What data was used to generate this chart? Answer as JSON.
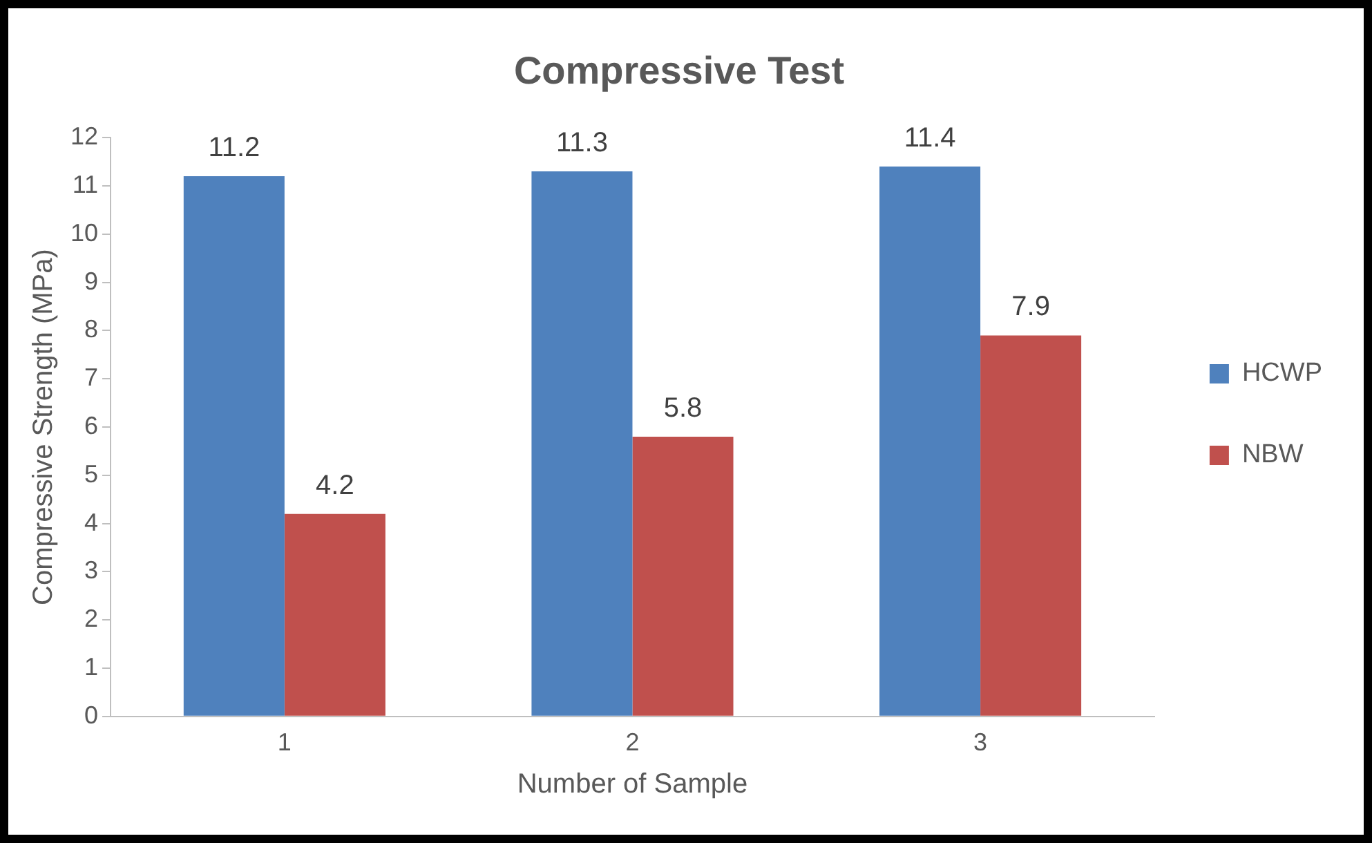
{
  "chart_data": {
    "type": "bar",
    "title": "Compressive Test",
    "xlabel": "Number of Sample",
    "ylabel": "Compressive Strength (MPa)",
    "categories": [
      "1",
      "2",
      "3"
    ],
    "series": [
      {
        "name": "HCWP",
        "color": "#4f81bd",
        "values": [
          11.2,
          11.3,
          11.4
        ]
      },
      {
        "name": "NBW",
        "color": "#c0504d",
        "values": [
          4.2,
          5.8,
          7.9
        ]
      }
    ],
    "ylim": [
      0,
      12
    ],
    "yticks": [
      0,
      1,
      2,
      3,
      4,
      5,
      6,
      7,
      8,
      9,
      10,
      11,
      12
    ],
    "grid": false,
    "legend": "right",
    "data_labels": true
  }
}
